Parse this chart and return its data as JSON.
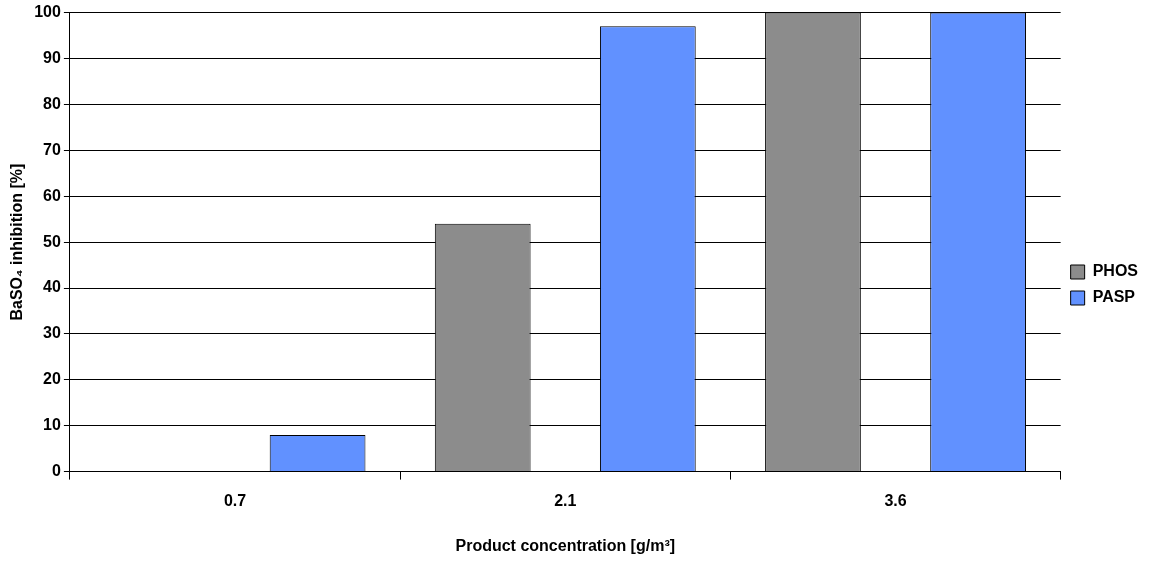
{
  "chart_data": {
    "type": "bar",
    "xlabel": "Product concentration [g/m³]",
    "ylabel": "BaSO₄ inhibition [%]",
    "categories": [
      "0.7",
      "2.1",
      "3.6"
    ],
    "series": [
      {
        "name": "PHOS",
        "color": "#8c8c8c",
        "values": [
          0,
          54,
          100
        ]
      },
      {
        "name": "PASP",
        "color": "#6191ff",
        "values": [
          8,
          97,
          100
        ]
      }
    ],
    "ylim": [
      0,
      100
    ],
    "yticks": [
      0,
      10,
      20,
      30,
      40,
      50,
      60,
      70,
      80,
      90,
      100
    ],
    "grid": "y",
    "legend": "right"
  }
}
